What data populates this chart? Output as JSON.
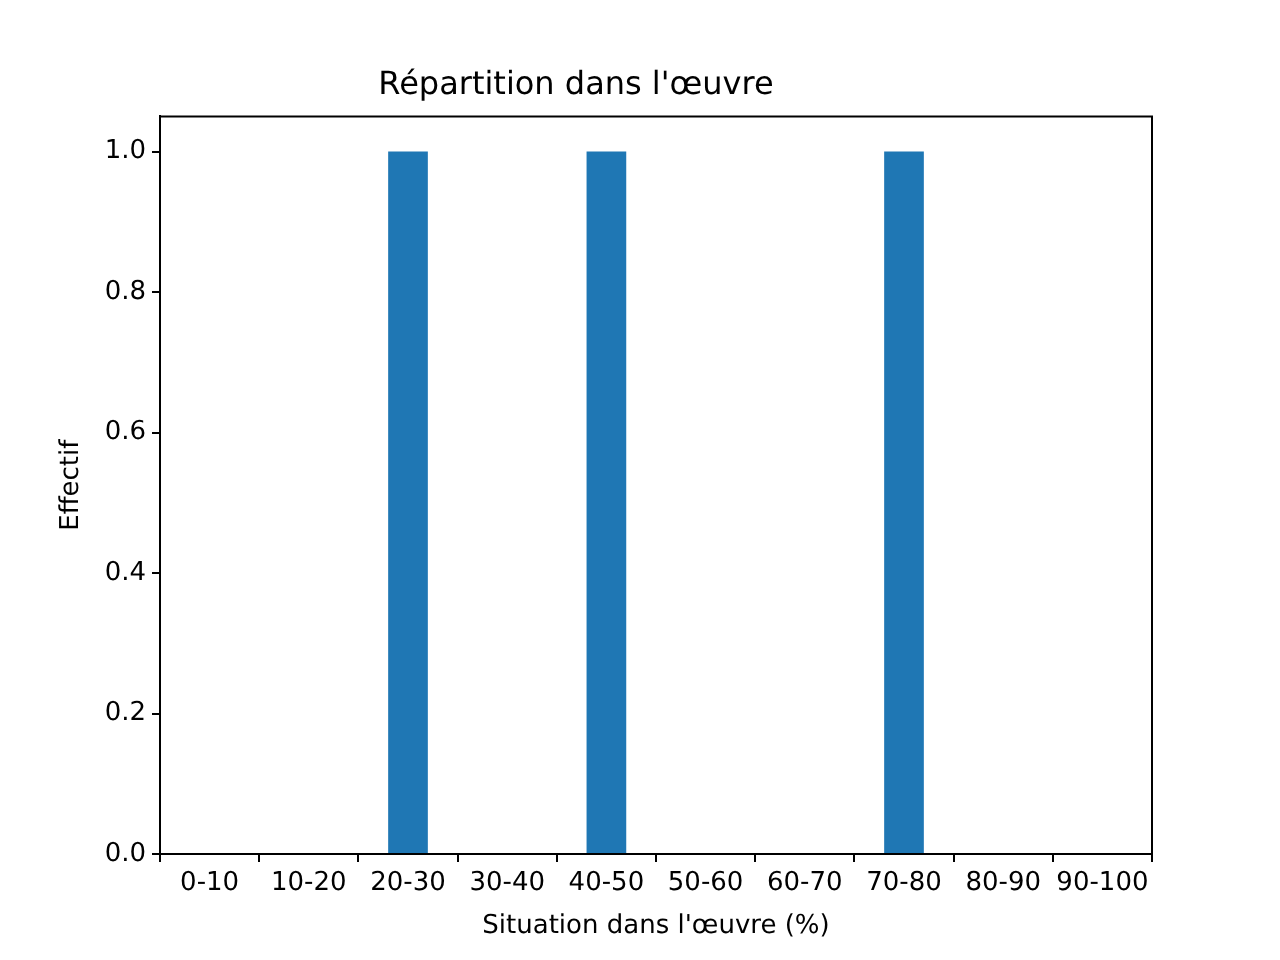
{
  "chart_data": {
    "type": "bar",
    "title": "Répartition dans l'œuvre",
    "xlabel": "Situation dans l'œuvre (%)",
    "ylabel": "Effectif",
    "categories": [
      "0-10",
      "10-20",
      "20-30",
      "30-40",
      "40-50",
      "50-60",
      "60-70",
      "70-80",
      "80-90",
      "90-100"
    ],
    "values": [
      0,
      0,
      1,
      0,
      1,
      0,
      0,
      1,
      0,
      0
    ],
    "color": "#1f77b4",
    "ylim": [
      0,
      1.05
    ],
    "yticks": [
      {
        "value": 0,
        "label": "0.0"
      },
      0.2,
      0.4,
      0.6,
      0.8,
      {
        "value": 1,
        "label": "1.0"
      }
    ],
    "grid": false,
    "legend": false
  }
}
